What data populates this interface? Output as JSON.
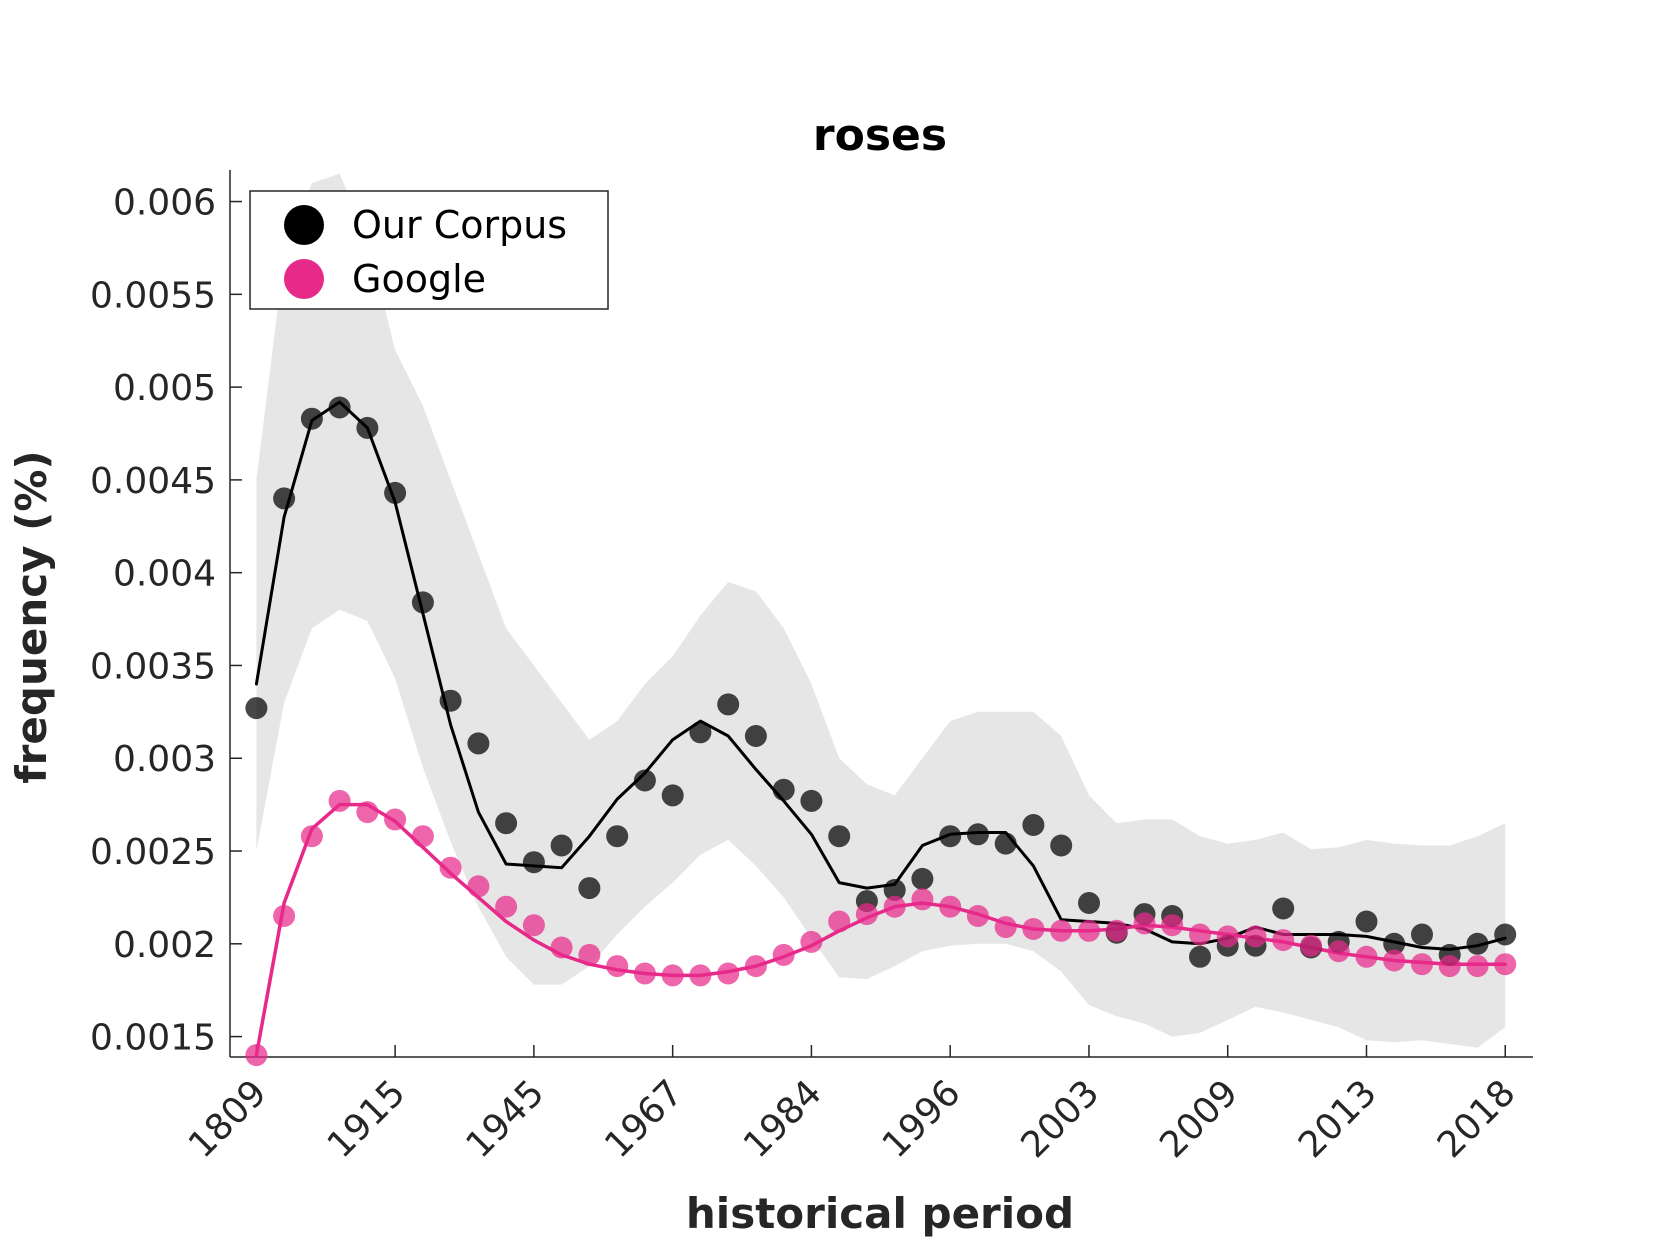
{
  "chart_data": {
    "type": "line",
    "title": "roses",
    "xlabel": "historical period",
    "ylabel": "frequency (%)",
    "x_tick_labels": [
      "1809",
      "1915",
      "1945",
      "1967",
      "1984",
      "1996",
      "2003",
      "2009",
      "2013",
      "2018"
    ],
    "x_tick_positions": [
      1,
      6,
      11,
      16,
      21,
      26,
      31,
      36,
      41,
      46
    ],
    "xlim": [
      0.05,
      47
    ],
    "ylim": [
      0.00139,
      0.00617
    ],
    "y_ticks": [
      0.0015,
      0.002,
      0.0025,
      0.003,
      0.0035,
      0.004,
      0.0045,
      0.005,
      0.0055,
      0.006
    ],
    "y_tick_labels": [
      "0.0015",
      "0.002",
      "0.0025",
      "0.003",
      "0.0035",
      "0.004",
      "0.0045",
      "0.005",
      "0.0055",
      "0.006"
    ],
    "legend_position": "top-left",
    "grid": false,
    "x": [
      1,
      2,
      3,
      4,
      5,
      6,
      7,
      8,
      9,
      10,
      11,
      12,
      13,
      14,
      15,
      16,
      17,
      18,
      19,
      20,
      21,
      22,
      23,
      24,
      25,
      26,
      27,
      28,
      29,
      30,
      31,
      32,
      33,
      34,
      35,
      36,
      37,
      38,
      39,
      40,
      41,
      42,
      43,
      44,
      45,
      46
    ],
    "series": [
      {
        "name": "Our Corpus",
        "color": "#000000",
        "points": [
          0.00327,
          0.0044,
          0.00483,
          0.00489,
          0.00478,
          0.00443,
          0.00384,
          0.00331,
          0.00308,
          0.00265,
          0.00244,
          0.00253,
          0.0023,
          0.00258,
          0.00288,
          0.0028,
          0.00314,
          0.00329,
          0.00312,
          0.00283,
          0.00277,
          0.00258,
          0.00223,
          0.00229,
          0.00235,
          0.00258,
          0.00259,
          0.00254,
          0.00264,
          0.00253,
          0.00222,
          0.00206,
          0.00216,
          0.00215,
          0.00193,
          0.00199,
          0.00199,
          0.00219,
          0.00198,
          0.00201,
          0.00212,
          0.002,
          0.00205,
          0.00194,
          0.002,
          0.00205
        ],
        "trend": [
          0.0034,
          0.0043,
          0.00482,
          0.00492,
          0.00478,
          0.00438,
          0.00378,
          0.00318,
          0.00271,
          0.00243,
          0.00242,
          0.00241,
          0.00258,
          0.00278,
          0.00292,
          0.0031,
          0.0032,
          0.00312,
          0.00294,
          0.00277,
          0.00259,
          0.00233,
          0.0023,
          0.00232,
          0.00253,
          0.00259,
          0.0026,
          0.0026,
          0.00242,
          0.00213,
          0.00212,
          0.00211,
          0.00208,
          0.00201,
          0.002,
          0.00203,
          0.00209,
          0.00205,
          0.00205,
          0.00205,
          0.00204,
          0.00201,
          0.00198,
          0.00197,
          0.00199,
          0.00203
        ],
        "band_upper": [
          0.0045,
          0.0057,
          0.0061,
          0.00615,
          0.0058,
          0.0052,
          0.0049,
          0.0045,
          0.0041,
          0.0037,
          0.0035,
          0.0033,
          0.0031,
          0.0032,
          0.0034,
          0.00355,
          0.00377,
          0.00395,
          0.0039,
          0.0037,
          0.0034,
          0.003,
          0.00286,
          0.0028,
          0.003,
          0.0032,
          0.00325,
          0.00325,
          0.00325,
          0.00312,
          0.0028,
          0.00265,
          0.00267,
          0.00267,
          0.00258,
          0.00254,
          0.00256,
          0.0026,
          0.00251,
          0.00252,
          0.00256,
          0.00254,
          0.00253,
          0.00253,
          0.00258,
          0.00265
        ],
        "band_lower": [
          0.0025,
          0.0033,
          0.0037,
          0.0038,
          0.00374,
          0.00343,
          0.00295,
          0.00255,
          0.0022,
          0.00193,
          0.00178,
          0.00178,
          0.00188,
          0.00205,
          0.0022,
          0.00233,
          0.00248,
          0.00256,
          0.00242,
          0.00225,
          0.00203,
          0.00182,
          0.00181,
          0.00188,
          0.00196,
          0.00199,
          0.002,
          0.002,
          0.00196,
          0.00185,
          0.00167,
          0.00161,
          0.00157,
          0.0015,
          0.00152,
          0.00159,
          0.00166,
          0.00163,
          0.00159,
          0.00155,
          0.00148,
          0.00147,
          0.00148,
          0.00146,
          0.00144,
          0.00155
        ]
      },
      {
        "name": "Google",
        "color": "#e7298a",
        "points": [
          0.0014,
          0.00215,
          0.00258,
          0.00277,
          0.00271,
          0.00267,
          0.00258,
          0.00241,
          0.00231,
          0.0022,
          0.0021,
          0.00198,
          0.00194,
          0.00188,
          0.00184,
          0.00183,
          0.00183,
          0.00184,
          0.00188,
          0.00194,
          0.00201,
          0.00212,
          0.00216,
          0.0022,
          0.00224,
          0.0022,
          0.00215,
          0.00209,
          0.00208,
          0.00207,
          0.00207,
          0.00207,
          0.00211,
          0.0021,
          0.00205,
          0.00204,
          0.00204,
          0.00202,
          0.00199,
          0.00196,
          0.00193,
          0.00191,
          0.00189,
          0.00188,
          0.00188,
          0.00189
        ],
        "trend": [
          0.0014,
          0.00222,
          0.00262,
          0.00275,
          0.00275,
          0.00266,
          0.00252,
          0.00238,
          0.00225,
          0.00212,
          0.00202,
          0.00194,
          0.00189,
          0.00186,
          0.00184,
          0.00183,
          0.00183,
          0.00185,
          0.00188,
          0.00193,
          0.00199,
          0.00207,
          0.00214,
          0.0022,
          0.00222,
          0.0022,
          0.00216,
          0.00211,
          0.00208,
          0.00207,
          0.00207,
          0.00208,
          0.0021,
          0.00209,
          0.00207,
          0.00205,
          0.00203,
          0.00201,
          0.00198,
          0.00195,
          0.00193,
          0.00191,
          0.0019,
          0.00189,
          0.00189,
          0.00189
        ]
      }
    ]
  }
}
